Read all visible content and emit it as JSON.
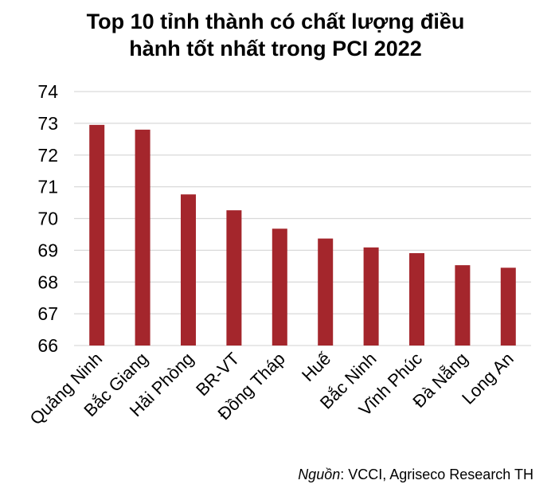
{
  "title_line1": "Top 10 tỉnh thành có chất lượng điều",
  "title_line2": "hành tốt nhất trong PCI 2022",
  "source_label": "Nguồn",
  "source_text": ": VCCI, Agriseco Research TH",
  "chart_data": {
    "type": "bar",
    "title": "Top 10 tỉnh thành có chất lượng điều hành tốt nhất trong PCI 2022",
    "categories": [
      "Quảng Ninh",
      "Bắc Giang",
      "Hải Phòng",
      "BR-VT",
      "Đồng Tháp",
      "Huế",
      "Bắc Ninh",
      "Vĩnh Phúc",
      "Đà Nẵng",
      "Long An"
    ],
    "values": [
      72.95,
      72.8,
      70.76,
      70.26,
      69.68,
      69.37,
      69.09,
      68.91,
      68.53,
      68.45
    ],
    "ylim": [
      66,
      74
    ],
    "yticks": [
      66,
      67,
      68,
      69,
      70,
      71,
      72,
      73,
      74
    ],
    "grid": true,
    "legend": "none",
    "bar_color": "#A4262C",
    "grid_color": "#D9D9D9"
  }
}
